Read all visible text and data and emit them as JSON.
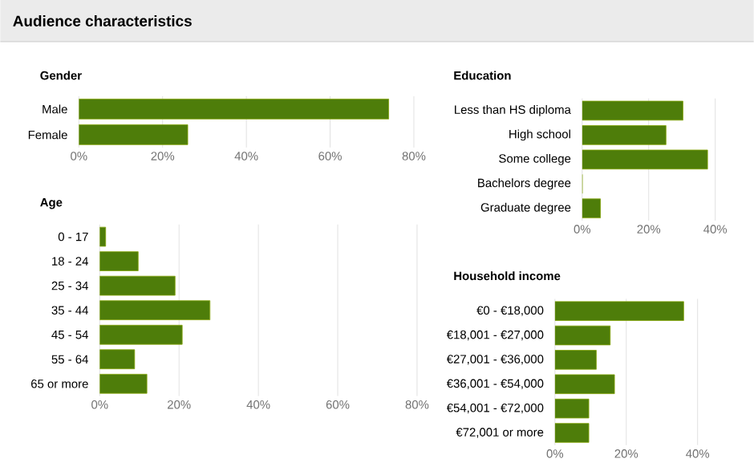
{
  "chart_data": [
    {
      "type": "other",
      "title": "Audience characteristics"
    },
    {
      "type": "bar",
      "orientation": "horizontal",
      "title": "Gender",
      "categories": [
        "Male",
        "Female"
      ],
      "values": [
        74,
        26
      ],
      "color": "#4e7d0a",
      "xlim": [
        0,
        80
      ],
      "xticks": [
        {
          "value": 0,
          "label": "0%"
        },
        {
          "value": 20,
          "label": "20%"
        },
        {
          "value": 40,
          "label": "40%"
        },
        {
          "value": 60,
          "label": "60%"
        },
        {
          "value": 80,
          "label": "80%"
        }
      ],
      "grid": "x"
    },
    {
      "type": "bar",
      "orientation": "horizontal",
      "title": "Age",
      "categories": [
        "0 - 17",
        "18 - 24",
        "25 - 34",
        "35 - 44",
        "45 - 54",
        "55 - 64",
        "65 or more"
      ],
      "values": [
        1.5,
        9.7,
        19,
        27.8,
        20.8,
        8.8,
        11.9
      ],
      "color": "#4e7d0a",
      "xlim": [
        0,
        80
      ],
      "xticks": [
        {
          "value": 0,
          "label": "0%"
        },
        {
          "value": 20,
          "label": "20%"
        },
        {
          "value": 40,
          "label": "40%"
        },
        {
          "value": 60,
          "label": "60%"
        },
        {
          "value": 80,
          "label": "80%"
        }
      ],
      "grid": "x"
    },
    {
      "type": "bar",
      "orientation": "horizontal",
      "title": "Education",
      "categories": [
        "Less than HS diploma",
        "High school",
        "Some college",
        "Bachelors degree",
        "Graduate degree"
      ],
      "values": [
        30.3,
        25.2,
        37.7,
        0,
        5.5
      ],
      "color": "#4e7d0a",
      "xlim": [
        0,
        40
      ],
      "xticks": [
        {
          "value": 0,
          "label": "0%"
        },
        {
          "value": 20,
          "label": "20%"
        },
        {
          "value": 40,
          "label": "40%"
        }
      ],
      "grid": "x"
    },
    {
      "type": "bar",
      "orientation": "horizontal",
      "title": "Household income",
      "categories": [
        "€0 - €18,000",
        "€18,001 - €27,000",
        "€27,001 - €36,000",
        "€36,001 - €54,000",
        "€54,001 - €72,000",
        "€72,001 or more"
      ],
      "values": [
        36.1,
        15.5,
        11.6,
        16.7,
        9.5,
        9.5
      ],
      "color": "#4e7d0a",
      "xlim": [
        0,
        40
      ],
      "xticks": [
        {
          "value": 0,
          "label": "0%"
        },
        {
          "value": 20,
          "label": "20%"
        },
        {
          "value": 40,
          "label": "40%"
        }
      ],
      "grid": "x"
    }
  ]
}
